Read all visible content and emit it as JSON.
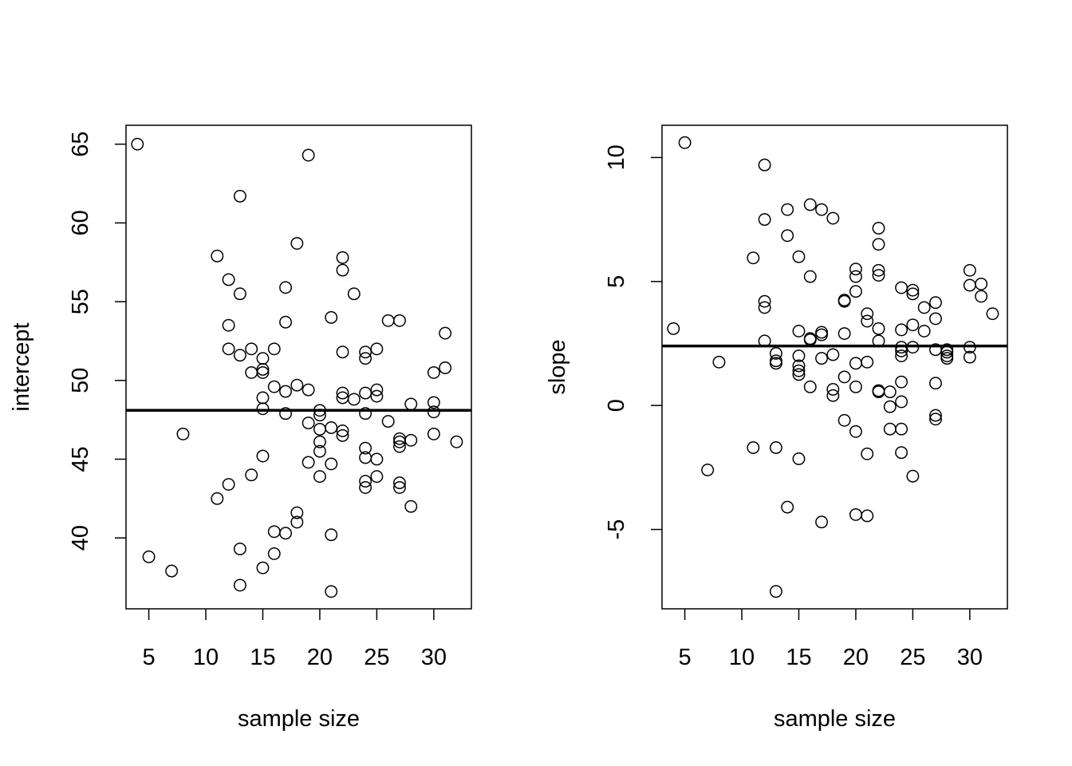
{
  "chart_data": [
    {
      "type": "scatter",
      "xlabel": "sample size",
      "ylabel": "intercept",
      "xlim": [
        3,
        33.3
      ],
      "ylim": [
        35.5,
        66.2
      ],
      "xticks": [
        5,
        10,
        15,
        20,
        25,
        30
      ],
      "yticks": [
        40,
        45,
        50,
        55,
        60,
        65
      ],
      "reference_line": 48.1,
      "points": [
        [
          4,
          65.0
        ],
        [
          5,
          38.8
        ],
        [
          7,
          37.9
        ],
        [
          8,
          46.6
        ],
        [
          11,
          57.9
        ],
        [
          11,
          42.5
        ],
        [
          12,
          56.4
        ],
        [
          12,
          53.5
        ],
        [
          12,
          52.0
        ],
        [
          12,
          43.4
        ],
        [
          13,
          61.7
        ],
        [
          13,
          55.5
        ],
        [
          13,
          51.6
        ],
        [
          13,
          39.3
        ],
        [
          13,
          37.0
        ],
        [
          14,
          52.0
        ],
        [
          14,
          50.5
        ],
        [
          14,
          44.0
        ],
        [
          15,
          51.4
        ],
        [
          15,
          50.7
        ],
        [
          15,
          50.5
        ],
        [
          15,
          48.9
        ],
        [
          15,
          48.2
        ],
        [
          15,
          45.2
        ],
        [
          15,
          38.1
        ],
        [
          16,
          52.0
        ],
        [
          16,
          49.6
        ],
        [
          16,
          40.4
        ],
        [
          16,
          39.0
        ],
        [
          17,
          55.9
        ],
        [
          17,
          53.7
        ],
        [
          17,
          49.3
        ],
        [
          17,
          47.9
        ],
        [
          17,
          40.3
        ],
        [
          18,
          58.7
        ],
        [
          18,
          49.7
        ],
        [
          18,
          41.6
        ],
        [
          18,
          41.0
        ],
        [
          19,
          64.3
        ],
        [
          19,
          49.4
        ],
        [
          19,
          47.3
        ],
        [
          19,
          44.8
        ],
        [
          20,
          48.1
        ],
        [
          20,
          47.8
        ],
        [
          20,
          46.9
        ],
        [
          20,
          46.1
        ],
        [
          20,
          45.5
        ],
        [
          20,
          43.9
        ],
        [
          21,
          54.0
        ],
        [
          21,
          47.0
        ],
        [
          21,
          44.7
        ],
        [
          21,
          40.2
        ],
        [
          21,
          36.6
        ],
        [
          22,
          57.8
        ],
        [
          22,
          57.0
        ],
        [
          22,
          51.8
        ],
        [
          22,
          49.2
        ],
        [
          22,
          48.9
        ],
        [
          22,
          46.8
        ],
        [
          22,
          46.5
        ],
        [
          23,
          55.5
        ],
        [
          23,
          48.8
        ],
        [
          24,
          51.8
        ],
        [
          24,
          51.4
        ],
        [
          24,
          49.2
        ],
        [
          24,
          47.9
        ],
        [
          24,
          45.7
        ],
        [
          24,
          45.1
        ],
        [
          24,
          43.6
        ],
        [
          24,
          43.2
        ],
        [
          25,
          52.0
        ],
        [
          25,
          49.4
        ],
        [
          25,
          49.0
        ],
        [
          25,
          45.0
        ],
        [
          25,
          43.9
        ],
        [
          26,
          53.8
        ],
        [
          26,
          47.4
        ],
        [
          27,
          53.8
        ],
        [
          27,
          46.3
        ],
        [
          27,
          46.1
        ],
        [
          27,
          45.8
        ],
        [
          27,
          43.5
        ],
        [
          27,
          43.2
        ],
        [
          28,
          48.5
        ],
        [
          28,
          46.2
        ],
        [
          28,
          42.0
        ],
        [
          30,
          50.5
        ],
        [
          30,
          48.6
        ],
        [
          30,
          48.0
        ],
        [
          30,
          46.6
        ],
        [
          31,
          53.0
        ],
        [
          31,
          50.8
        ],
        [
          32,
          46.1
        ]
      ]
    },
    {
      "type": "scatter",
      "xlabel": "sample size",
      "ylabel": "slope",
      "xlim": [
        3,
        33.3
      ],
      "ylim": [
        -8.2,
        11.3
      ],
      "xticks": [
        5,
        10,
        15,
        20,
        25,
        30
      ],
      "yticks": [
        -5,
        0,
        5,
        10
      ],
      "reference_line": 2.4,
      "points": [
        [
          4,
          3.1
        ],
        [
          5,
          10.6
        ],
        [
          7,
          -2.6
        ],
        [
          8,
          1.75
        ],
        [
          11,
          5.95
        ],
        [
          11,
          -1.7
        ],
        [
          12,
          9.7
        ],
        [
          12,
          7.5
        ],
        [
          12,
          4.2
        ],
        [
          12,
          3.95
        ],
        [
          12,
          2.6
        ],
        [
          13,
          2.1
        ],
        [
          13,
          1.8
        ],
        [
          13,
          1.7
        ],
        [
          13,
          -1.7
        ],
        [
          13,
          -7.5
        ],
        [
          14,
          7.9
        ],
        [
          14,
          6.85
        ],
        [
          14,
          -4.1
        ],
        [
          15,
          6.0
        ],
        [
          15,
          3.0
        ],
        [
          15,
          2.0
        ],
        [
          15,
          1.6
        ],
        [
          15,
          1.4
        ],
        [
          15,
          1.25
        ],
        [
          15,
          -2.15
        ],
        [
          16,
          8.1
        ],
        [
          16,
          5.2
        ],
        [
          16,
          2.7
        ],
        [
          16,
          2.65
        ],
        [
          16,
          0.75
        ],
        [
          17,
          7.9
        ],
        [
          17,
          2.95
        ],
        [
          17,
          2.85
        ],
        [
          17,
          1.9
        ],
        [
          17,
          -4.7
        ],
        [
          18,
          7.55
        ],
        [
          18,
          2.05
        ],
        [
          18,
          0.65
        ],
        [
          18,
          0.4
        ],
        [
          19,
          4.25
        ],
        [
          19,
          4.2
        ],
        [
          19,
          2.9
        ],
        [
          19,
          1.15
        ],
        [
          19,
          -0.6
        ],
        [
          20,
          5.5
        ],
        [
          20,
          5.2
        ],
        [
          20,
          4.6
        ],
        [
          20,
          1.7
        ],
        [
          20,
          0.75
        ],
        [
          20,
          -1.05
        ],
        [
          20,
          -4.4
        ],
        [
          21,
          3.7
        ],
        [
          21,
          3.4
        ],
        [
          21,
          1.75
        ],
        [
          21,
          -1.95
        ],
        [
          21,
          -4.45
        ],
        [
          22,
          7.15
        ],
        [
          22,
          6.5
        ],
        [
          22,
          5.45
        ],
        [
          22,
          5.25
        ],
        [
          22,
          3.1
        ],
        [
          22,
          2.6
        ],
        [
          22,
          0.6
        ],
        [
          22,
          0.55
        ],
        [
          23,
          0.55
        ],
        [
          23,
          -0.05
        ],
        [
          23,
          -0.95
        ],
        [
          24,
          4.75
        ],
        [
          24,
          3.05
        ],
        [
          24,
          2.35
        ],
        [
          24,
          2.2
        ],
        [
          24,
          2.0
        ],
        [
          24,
          0.95
        ],
        [
          24,
          0.15
        ],
        [
          24,
          -0.95
        ],
        [
          24,
          -1.9
        ],
        [
          25,
          4.65
        ],
        [
          25,
          4.5
        ],
        [
          25,
          3.25
        ],
        [
          25,
          2.35
        ],
        [
          25,
          -2.85
        ],
        [
          26,
          3.95
        ],
        [
          26,
          3.0
        ],
        [
          27,
          4.15
        ],
        [
          27,
          3.5
        ],
        [
          27,
          2.25
        ],
        [
          27,
          0.9
        ],
        [
          27,
          -0.4
        ],
        [
          27,
          -0.55
        ],
        [
          28,
          2.25
        ],
        [
          28,
          2.15
        ],
        [
          28,
          2.0
        ],
        [
          28,
          1.9
        ],
        [
          30,
          5.45
        ],
        [
          30,
          4.85
        ],
        [
          30,
          2.35
        ],
        [
          30,
          1.95
        ],
        [
          31,
          4.9
        ],
        [
          31,
          4.4
        ],
        [
          32,
          3.7
        ]
      ]
    }
  ]
}
